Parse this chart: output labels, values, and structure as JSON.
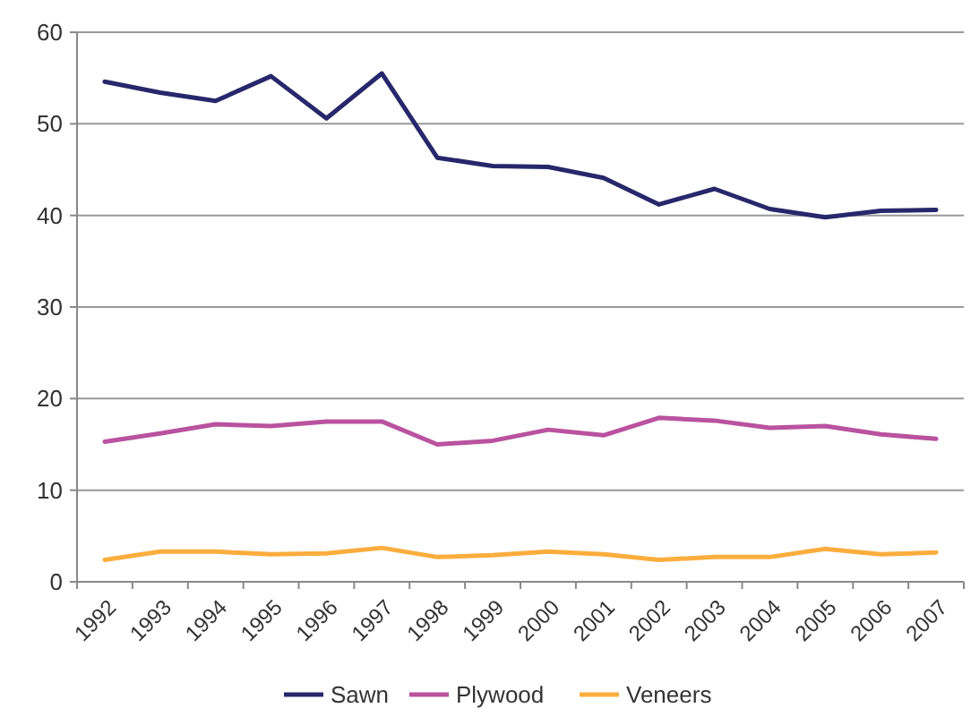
{
  "chart_data": {
    "type": "line",
    "categories": [
      "1992",
      "1993",
      "1994",
      "1995",
      "1996",
      "1997",
      "1998",
      "1999",
      "2000",
      "2001",
      "2002",
      "2003",
      "2004",
      "2005",
      "2006",
      "2007"
    ],
    "series": [
      {
        "name": "Sawn",
        "color": "#27276b",
        "values": [
          54.6,
          53.4,
          52.5,
          55.2,
          50.6,
          55.5,
          46.3,
          45.4,
          45.3,
          44.1,
          41.2,
          42.9,
          40.7,
          39.8,
          40.5,
          40.6
        ]
      },
      {
        "name": "Plywood",
        "color": "#b9529f",
        "values": [
          15.3,
          16.2,
          17.2,
          17.0,
          17.5,
          17.5,
          15.0,
          15.4,
          16.6,
          16.0,
          17.9,
          17.6,
          16.8,
          17.0,
          16.1,
          15.6
        ]
      },
      {
        "name": "Veneers",
        "color": "#fbad3d",
        "values": [
          2.4,
          3.3,
          3.3,
          3.0,
          3.1,
          3.7,
          2.7,
          2.9,
          3.3,
          3.0,
          2.4,
          2.7,
          2.7,
          3.6,
          3.0,
          3.2
        ]
      }
    ],
    "ylim": [
      0,
      60
    ],
    "yticks": [
      0,
      10,
      20,
      30,
      40,
      50,
      60
    ],
    "grid": "y",
    "legend": "bottom",
    "marker": "none",
    "line_style": "solid"
  }
}
